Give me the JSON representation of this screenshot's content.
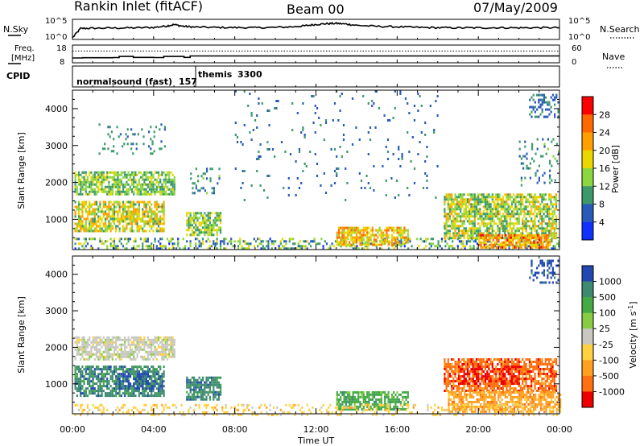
{
  "header": {
    "title": "Rankin Inlet (fitACF)",
    "beam": "Beam 00",
    "date": "07/May/2009"
  },
  "summary_panels": {
    "nsky_label": "N.Sky",
    "nsearch_label": "N.Search",
    "nsky_ticks": [
      "10^5",
      "10^0"
    ],
    "nsearch_ticks": [
      "10^5",
      "10^0"
    ],
    "freq_label_1": "Freq.",
    "freq_label_2": "[MHz]",
    "freq_ticks": [
      "18",
      "8"
    ],
    "nave_label": "Nave",
    "nave_ticks": [
      "60",
      "0"
    ],
    "cpid_label": "CPID",
    "cpid_modes": [
      {
        "name": "normalsound (fast)",
        "id": "157"
      },
      {
        "name": "themis",
        "id": "3300"
      }
    ]
  },
  "colorbars": {
    "power": {
      "label": "Power [dB]",
      "ticks": [
        "28",
        "24",
        "20",
        "16",
        "12",
        "8",
        "4"
      ],
      "colors": [
        "#ff0000",
        "#ff6a00",
        "#ffa000",
        "#e8d800",
        "#8cd640",
        "#3c9a6a",
        "#2a5ab8",
        "#1030ff"
      ]
    },
    "velocity": {
      "label": "Velocity [m s",
      "label_sup": "-1",
      "label_end": "]",
      "ticks": [
        "1000",
        "500",
        "100",
        "25",
        "-25",
        "-100",
        "-500",
        "-1000"
      ],
      "colors": [
        "#2248b0",
        "#3c8a70",
        "#44aa44",
        "#88cc44",
        "#c8c8c0",
        "#ffd040",
        "#ffa020",
        "#ff7010",
        "#ee0000"
      ]
    }
  },
  "chart_data": [
    {
      "type": "line",
      "name": "N.Sky / N.Search",
      "yscale": "log",
      "ylim": [
        1,
        100000
      ],
      "xlim": [
        0,
        24
      ],
      "x_hours": [
        0,
        0.4,
        1,
        2,
        3,
        4,
        4.6,
        5,
        5.5,
        6,
        7,
        8,
        9,
        10,
        11,
        11.5,
        12,
        12.5,
        13,
        13.5,
        14,
        15,
        16,
        17,
        18,
        19,
        20,
        21,
        22,
        23,
        24
      ],
      "nsky_values": [
        1,
        600,
        700,
        800,
        900,
        1200,
        3000,
        8000,
        2500,
        1500,
        1200,
        1100,
        1000,
        1200,
        2000,
        4000,
        9000,
        15000,
        18000,
        12000,
        5000,
        2500,
        1800,
        1200,
        1000,
        900,
        900,
        1000,
        900,
        1000,
        1000
      ]
    },
    {
      "type": "line",
      "name": "Freq. / Nave",
      "freq_ylim": [
        8,
        18
      ],
      "nave_ylim": [
        0,
        60
      ],
      "x_hours": [
        0,
        0.5,
        1,
        2,
        2.3,
        3,
        4,
        4.5,
        5.5,
        5.8,
        6,
        7,
        8,
        12,
        16,
        20,
        24
      ],
      "freq_values": [
        10.2,
        10.4,
        10.4,
        10.5,
        11.3,
        10.6,
        10.5,
        11.3,
        10.6,
        11.6,
        11.6,
        11.6,
        11.6,
        11.6,
        11.6,
        11.6,
        11.6
      ],
      "nave_values": [
        42,
        42,
        42,
        42,
        42,
        42,
        42,
        42,
        42,
        42,
        42,
        42,
        42,
        42,
        42,
        42,
        42
      ]
    },
    {
      "type": "heatmap",
      "name": "Power",
      "xlabel": "",
      "ylabel": "Slant Range [km]",
      "xlim": [
        0,
        24
      ],
      "ylim": [
        180,
        4500
      ],
      "xticks": [
        "00:00",
        "04:00",
        "08:00",
        "12:00",
        "16:00",
        "20:00",
        "00:00"
      ],
      "yticks": [
        1000,
        2000,
        3000,
        4000
      ],
      "colorbar_range_db": [
        0,
        32
      ],
      "regions": [
        {
          "t0": 0.1,
          "t1": 5.0,
          "r0": 1700,
          "r1": 2300,
          "level": 13,
          "spread": 5
        },
        {
          "t0": 0.1,
          "t1": 4.5,
          "r0": 700,
          "r1": 1500,
          "level": 17,
          "spread": 7
        },
        {
          "t0": 1.2,
          "t1": 4.6,
          "r0": 2800,
          "r1": 3600,
          "level": 9,
          "spread": 3,
          "density": 0.12
        },
        {
          "t0": 5.6,
          "t1": 7.3,
          "r0": 600,
          "r1": 1200,
          "level": 14,
          "spread": 6
        },
        {
          "t0": 5.8,
          "t1": 7.2,
          "r0": 1700,
          "r1": 2400,
          "level": 9,
          "spread": 4,
          "density": 0.2
        },
        {
          "t0": 0.1,
          "t1": 24,
          "r0": 180,
          "r1": 500,
          "level": 11,
          "spread": 8,
          "density": 0.35
        },
        {
          "t0": 13,
          "t1": 16.5,
          "r0": 300,
          "r1": 800,
          "level": 20,
          "spread": 6
        },
        {
          "t0": 18.3,
          "t1": 23.8,
          "r0": 500,
          "r1": 1700,
          "level": 15,
          "spread": 7
        },
        {
          "t0": 20,
          "t1": 23.5,
          "r0": 250,
          "r1": 600,
          "level": 23,
          "spread": 6
        },
        {
          "t0": 8,
          "t1": 18,
          "r0": 1500,
          "r1": 4500,
          "level": 7,
          "spread": 3,
          "density": 0.03
        },
        {
          "t0": 22.5,
          "t1": 23.9,
          "r0": 3800,
          "r1": 4400,
          "level": 7,
          "spread": 3,
          "density": 0.35
        },
        {
          "t0": 22,
          "t1": 24,
          "r0": 1900,
          "r1": 3200,
          "level": 9,
          "spread": 4,
          "density": 0.15
        }
      ]
    },
    {
      "type": "heatmap",
      "name": "Velocity",
      "xlabel": "Time UT",
      "ylabel": "Slant Range [km]",
      "xlim": [
        0,
        24
      ],
      "ylim": [
        180,
        4500
      ],
      "xticks": [
        "00:00",
        "04:00",
        "08:00",
        "12:00",
        "16:00",
        "20:00",
        "00:00"
      ],
      "yticks": [
        1000,
        2000,
        3000,
        4000
      ],
      "regions": [
        {
          "t0": 0.1,
          "t1": 5.0,
          "r0": 1700,
          "r1": 2300,
          "class": "25"
        },
        {
          "t0": 0.1,
          "t1": 4.5,
          "r0": 700,
          "r1": 1500,
          "class": "500"
        },
        {
          "t0": 2.2,
          "t1": 4.5,
          "r0": 900,
          "r1": 1300,
          "class": "1000",
          "density": 0.35
        },
        {
          "t0": 5.6,
          "t1": 7.3,
          "r0": 600,
          "r1": 1200,
          "class": "500"
        },
        {
          "t0": 13,
          "t1": 16.5,
          "r0": 300,
          "r1": 800,
          "class": "100"
        },
        {
          "t0": 18.3,
          "t1": 23.8,
          "r0": 800,
          "r1": 1700,
          "class": "-500"
        },
        {
          "t0": 19,
          "t1": 22,
          "r0": 1000,
          "r1": 1500,
          "class": "-1000",
          "density": 0.5
        },
        {
          "t0": 18.5,
          "t1": 24,
          "r0": 250,
          "r1": 800,
          "class": "-100"
        },
        {
          "t0": 0.1,
          "t1": 24,
          "r0": 180,
          "r1": 450,
          "class": "-25",
          "density": 0.25
        },
        {
          "t0": 22.5,
          "t1": 23.9,
          "r0": 3800,
          "r1": 4400,
          "class": "1000",
          "density": 0.35
        }
      ]
    }
  ]
}
